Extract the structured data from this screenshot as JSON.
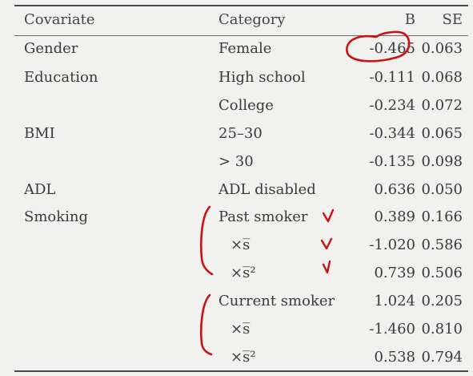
{
  "header": {
    "covariate": "Covariate",
    "category": "Category",
    "b": "B",
    "se": "SE"
  },
  "rows": [
    {
      "covariate": "Gender",
      "category": "Female",
      "b": "-0.465",
      "se": "0.063"
    },
    {
      "covariate": "Education",
      "category": "High school",
      "b": "-0.111",
      "se": "0.068"
    },
    {
      "covariate": "",
      "category": "College",
      "b": "-0.234",
      "se": "0.072"
    },
    {
      "covariate": "BMI",
      "category": "25–30",
      "b": "-0.344",
      "se": "0.065"
    },
    {
      "covariate": "",
      "category": "> 30",
      "b": "-0.135",
      "se": "0.098"
    },
    {
      "covariate": "ADL",
      "category": "ADL disabled",
      "b": "0.636",
      "se": "0.050"
    },
    {
      "covariate": "Smoking",
      "category": "Past smoker",
      "b": "0.389",
      "se": "0.166"
    },
    {
      "covariate": "",
      "category": "×s̅",
      "b": "-1.020",
      "se": "0.586"
    },
    {
      "covariate": "",
      "category": "×s̅²",
      "b": "0.739",
      "se": "0.506"
    },
    {
      "covariate": "",
      "category": "Current smoker",
      "b": "1.024",
      "se": "0.205"
    },
    {
      "covariate": "",
      "category": "×s̅",
      "b": "-1.460",
      "se": "0.810"
    },
    {
      "covariate": "",
      "category": "×s̅²",
      "b": "0.538",
      "se": "0.794"
    }
  ],
  "annotations": {
    "ink_color": "#cc1111",
    "marks": [
      "circle-around-first-b-value",
      "checkmarks-past-smoker-rows",
      "bracket-past-smoker-group",
      "bracket-current-smoker-group"
    ]
  }
}
